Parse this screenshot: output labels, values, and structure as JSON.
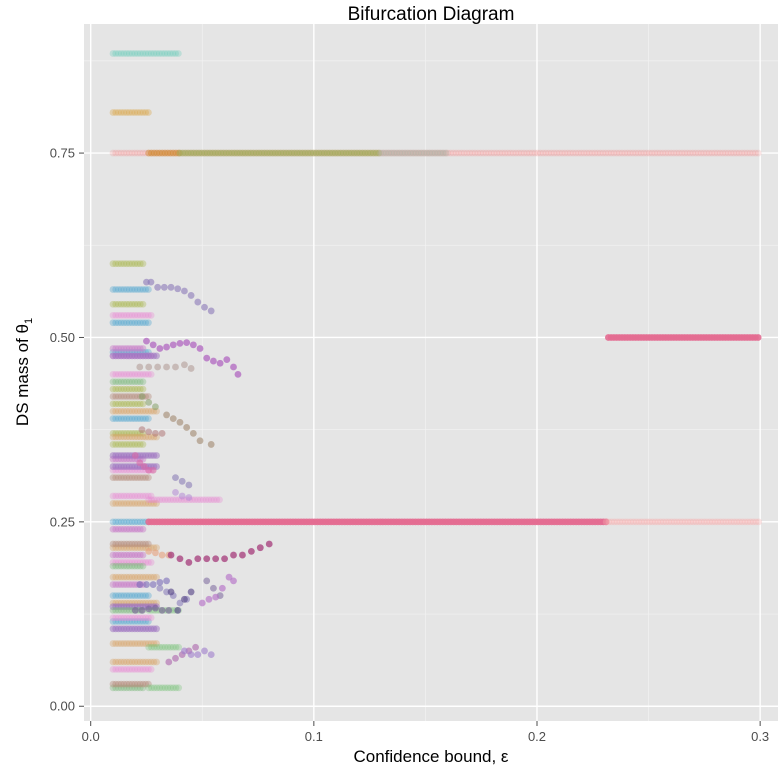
{
  "chart_data": {
    "type": "scatter",
    "title": "Bifurcation Diagram",
    "xlabel": "Confidence bound, ε",
    "ylabel_main": "DS mass of θ",
    "ylabel_sub": "1",
    "xlim": [
      -0.003,
      0.308
    ],
    "ylim": [
      -0.02,
      0.925
    ],
    "x_ticks": [
      0,
      0.1,
      0.2,
      0.3
    ],
    "x_tick_labels": [
      "0.0",
      "0.1",
      "0.2",
      "0.3"
    ],
    "y_ticks": [
      0,
      0.25,
      0.5,
      0.75
    ],
    "y_tick_labels": [
      "0.00",
      "0.25",
      "0.50",
      "0.75"
    ],
    "grid": true,
    "legend": "none",
    "background": "#e5e5e5",
    "series": [
      {
        "color": "#5fc9b5",
        "alpha": 0.3,
        "x_start": 0.01,
        "x_end": 0.04,
        "y": [
          0.885
        ]
      },
      {
        "color": "#d9a441",
        "alpha": 0.35,
        "x_start": 0.01,
        "x_end": 0.026,
        "y": [
          0.805
        ]
      },
      {
        "color": "#f08a8a",
        "alpha": 0.22,
        "x_start": 0.01,
        "x_end": 0.3,
        "y": [
          0.75
        ]
      },
      {
        "color": "#cf8a2e",
        "alpha": 0.45,
        "x_start": 0.026,
        "x_end": 0.04,
        "y": [
          0.75
        ]
      },
      {
        "color": "#9aa850",
        "alpha": 0.45,
        "x_start": 0.04,
        "x_end": 0.13,
        "y": [
          0.75
        ]
      },
      {
        "color": "#aab0a0",
        "alpha": 0.35,
        "x_start": 0.13,
        "x_end": 0.16,
        "y": [
          0.75
        ]
      },
      {
        "color": "#a7b548",
        "alpha": 0.35,
        "x_start": 0.01,
        "x_end": 0.024,
        "y": [
          0.6,
          0.545,
          0.43,
          0.41,
          0.37,
          0.355
        ]
      },
      {
        "color": "#4aa3cf",
        "alpha": 0.35,
        "x_start": 0.01,
        "x_end": 0.026,
        "y": [
          0.565,
          0.52,
          0.48,
          0.39,
          0.25,
          0.15,
          0.115
        ]
      },
      {
        "color": "#e88ad4",
        "alpha": 0.35,
        "x_start": 0.01,
        "x_end": 0.028,
        "y": [
          0.53,
          0.475,
          0.45,
          0.32,
          0.285,
          0.195,
          0.12,
          0.05
        ]
      },
      {
        "color": "#d8a060",
        "alpha": 0.35,
        "x_start": 0.01,
        "x_end": 0.03,
        "y": [
          0.4,
          0.365,
          0.275,
          0.215,
          0.175,
          0.14,
          0.085,
          0.06
        ]
      },
      {
        "color": "#c77bc7",
        "alpha": 0.45,
        "x_start": 0.01,
        "x_end": 0.024,
        "y": [
          0.485,
          0.335,
          0.24,
          0.205,
          0.165
        ]
      },
      {
        "color": "#9c6fbf",
        "alpha": 0.5,
        "x_start": 0.01,
        "x_end": 0.03,
        "y": [
          0.475,
          0.34,
          0.325,
          0.135,
          0.105
        ]
      },
      {
        "color": "#78b878",
        "alpha": 0.35,
        "x_start": 0.01,
        "x_end": 0.024,
        "y": [
          0.44,
          0.19,
          0.13,
          0.025
        ]
      },
      {
        "color": "#b58a78",
        "alpha": 0.4,
        "x_start": 0.01,
        "x_end": 0.026,
        "y": [
          0.42,
          0.31,
          0.22,
          0.03
        ]
      },
      {
        "color": "#70c070",
        "alpha": 0.3,
        "x_start": 0.026,
        "x_end": 0.04,
        "y": [
          0.025,
          0.13,
          0.08
        ]
      },
      {
        "color": "#e882d2",
        "alpha": 0.3,
        "x_start": 0.026,
        "x_end": 0.058,
        "y": [
          0.28
        ]
      },
      {
        "color": "#e36b91",
        "alpha": 0.9,
        "x_start": 0.026,
        "x_end": 0.231,
        "y": [
          0.25
        ]
      },
      {
        "color": "#e36b91",
        "alpha": 0.9,
        "x_start": 0.232,
        "x_end": 0.3,
        "y": [
          0.5
        ]
      },
      {
        "color": "#f5b0b0",
        "alpha": 0.35,
        "x_start": 0.231,
        "x_end": 0.3,
        "y": [
          0.25
        ]
      },
      {
        "color": "#8a78b8",
        "alpha": 0.6,
        "x": [
          0.025,
          0.027,
          0.03,
          0.033,
          0.036,
          0.039,
          0.042,
          0.045,
          0.048,
          0.051,
          0.054
        ],
        "y": [
          0.575,
          0.575,
          0.568,
          0.568,
          0.568,
          0.566,
          0.563,
          0.557,
          0.548,
          0.541,
          0.536
        ]
      },
      {
        "color": "#b065c0",
        "alpha": 0.75,
        "x": [
          0.025,
          0.028,
          0.031,
          0.034,
          0.037,
          0.04,
          0.043,
          0.046,
          0.049,
          0.052,
          0.055,
          0.058,
          0.061,
          0.064,
          0.066
        ],
        "y": [
          0.495,
          0.49,
          0.485,
          0.487,
          0.49,
          0.492,
          0.493,
          0.49,
          0.485,
          0.472,
          0.468,
          0.465,
          0.47,
          0.46,
          0.45
        ]
      },
      {
        "color": "#a9908a",
        "alpha": 0.5,
        "x": [
          0.022,
          0.026,
          0.03,
          0.034,
          0.038,
          0.042,
          0.045
        ],
        "y": [
          0.46,
          0.46,
          0.46,
          0.46,
          0.46,
          0.463,
          0.458
        ]
      },
      {
        "color": "#9b8064",
        "alpha": 0.55,
        "x": [
          0.034,
          0.037,
          0.04,
          0.043,
          0.046,
          0.049,
          0.054
        ],
        "y": [
          0.395,
          0.39,
          0.385,
          0.378,
          0.37,
          0.36,
          0.355
        ]
      },
      {
        "color": "#7d9b60",
        "alpha": 0.5,
        "x": [
          0.023,
          0.026,
          0.029
        ],
        "y": [
          0.42,
          0.412,
          0.406
        ]
      },
      {
        "color": "#b07878",
        "alpha": 0.55,
        "x": [
          0.023,
          0.026,
          0.029,
          0.032
        ],
        "y": [
          0.375,
          0.372,
          0.37,
          0.37
        ]
      },
      {
        "color": "#d96aa6",
        "alpha": 0.6,
        "x": [
          0.02,
          0.022,
          0.024,
          0.026,
          0.028
        ],
        "y": [
          0.34,
          0.33,
          0.325,
          0.32,
          0.32
        ]
      },
      {
        "color": "#8b7db5",
        "alpha": 0.6,
        "x": [
          0.038,
          0.041,
          0.044
        ],
        "y": [
          0.31,
          0.305,
          0.3
        ]
      },
      {
        "color": "#b48ad6",
        "alpha": 0.55,
        "x": [
          0.038,
          0.041,
          0.044
        ],
        "y": [
          0.29,
          0.285,
          0.283
        ]
      },
      {
        "color": "#e6a07c",
        "alpha": 0.6,
        "x": [
          0.026,
          0.029,
          0.032,
          0.035
        ],
        "y": [
          0.21,
          0.208,
          0.205,
          0.205
        ]
      },
      {
        "color": "#a43a7a",
        "alpha": 0.75,
        "x": [
          0.036,
          0.04,
          0.044,
          0.048,
          0.052,
          0.056,
          0.06,
          0.064,
          0.068,
          0.072,
          0.076,
          0.08
        ],
        "y": [
          0.205,
          0.2,
          0.195,
          0.2,
          0.2,
          0.2,
          0.2,
          0.205,
          0.205,
          0.21,
          0.215,
          0.22
        ]
      },
      {
        "color": "#7a6ab8",
        "alpha": 0.6,
        "x": [
          0.022,
          0.025,
          0.028,
          0.031,
          0.034
        ],
        "y": [
          0.165,
          0.165,
          0.165,
          0.168,
          0.17
        ]
      },
      {
        "color": "#8a7fba",
        "alpha": 0.6,
        "x": [
          0.031,
          0.034,
          0.037,
          0.04,
          0.043
        ],
        "y": [
          0.16,
          0.155,
          0.15,
          0.14,
          0.145
        ]
      },
      {
        "color": "#5a4a8a",
        "alpha": 0.65,
        "x": [
          0.036,
          0.039,
          0.042,
          0.045
        ],
        "y": [
          0.155,
          0.13,
          0.145,
          0.155
        ]
      },
      {
        "color": "#8b7aa8",
        "alpha": 0.65,
        "x": [
          0.052,
          0.055,
          0.058
        ],
        "y": [
          0.17,
          0.16,
          0.15
        ]
      },
      {
        "color": "#b571c8",
        "alpha": 0.65,
        "x": [
          0.05,
          0.053,
          0.056,
          0.059,
          0.062,
          0.064
        ],
        "y": [
          0.14,
          0.145,
          0.148,
          0.16,
          0.175,
          0.17
        ]
      },
      {
        "color": "#7a5f9a",
        "alpha": 0.6,
        "x": [
          0.02,
          0.023,
          0.026,
          0.029,
          0.032,
          0.035
        ],
        "y": [
          0.13,
          0.13,
          0.132,
          0.133,
          0.13,
          0.13
        ]
      },
      {
        "color": "#b06fb0",
        "alpha": 0.65,
        "x": [
          0.035,
          0.038,
          0.041,
          0.044,
          0.047
        ],
        "y": [
          0.06,
          0.065,
          0.07,
          0.075,
          0.08
        ]
      },
      {
        "color": "#9e7dcc",
        "alpha": 0.6,
        "x": [
          0.042,
          0.045,
          0.048,
          0.051,
          0.054
        ],
        "y": [
          0.075,
          0.07,
          0.07,
          0.075,
          0.07
        ]
      }
    ]
  }
}
